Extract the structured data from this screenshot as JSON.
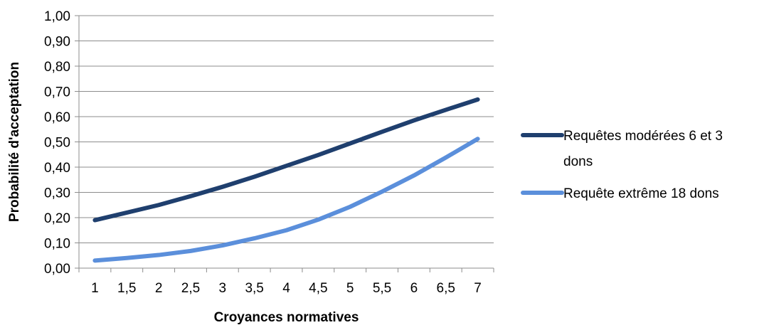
{
  "chart_data": {
    "type": "line",
    "xlabel": "Croyances normatives",
    "ylabel": "Probabilité d'acceptation",
    "x": [
      1,
      1.5,
      2,
      2.5,
      3,
      3.5,
      4,
      4.5,
      5,
      5.5,
      6,
      6.5,
      7
    ],
    "x_tick_labels": [
      "1",
      "1,5",
      "2",
      "2,5",
      "3",
      "3,5",
      "4",
      "4,5",
      "5",
      "5,5",
      "6",
      "6,5",
      "7"
    ],
    "y_tick_labels": [
      "0,00",
      "0,10",
      "0,20",
      "0,30",
      "0,40",
      "0,50",
      "0,60",
      "0,70",
      "0,80",
      "0,90",
      "1,00"
    ],
    "ylim": [
      0,
      1
    ],
    "grid": true,
    "legend_position": "right",
    "series": [
      {
        "name_lines": [
          "Requêtes modérées 6 et 3",
          "dons"
        ],
        "color": "#1F3F6E",
        "values": [
          0.19,
          0.22,
          0.25,
          0.285,
          0.322,
          0.362,
          0.405,
          0.448,
          0.494,
          0.54,
          0.585,
          0.627,
          0.668
        ]
      },
      {
        "name_lines": [
          "Requête extrême 18 dons"
        ],
        "color": "#5B8FDB",
        "values": [
          0.03,
          0.04,
          0.052,
          0.068,
          0.09,
          0.118,
          0.15,
          0.192,
          0.243,
          0.303,
          0.367,
          0.438,
          0.512
        ]
      }
    ]
  }
}
